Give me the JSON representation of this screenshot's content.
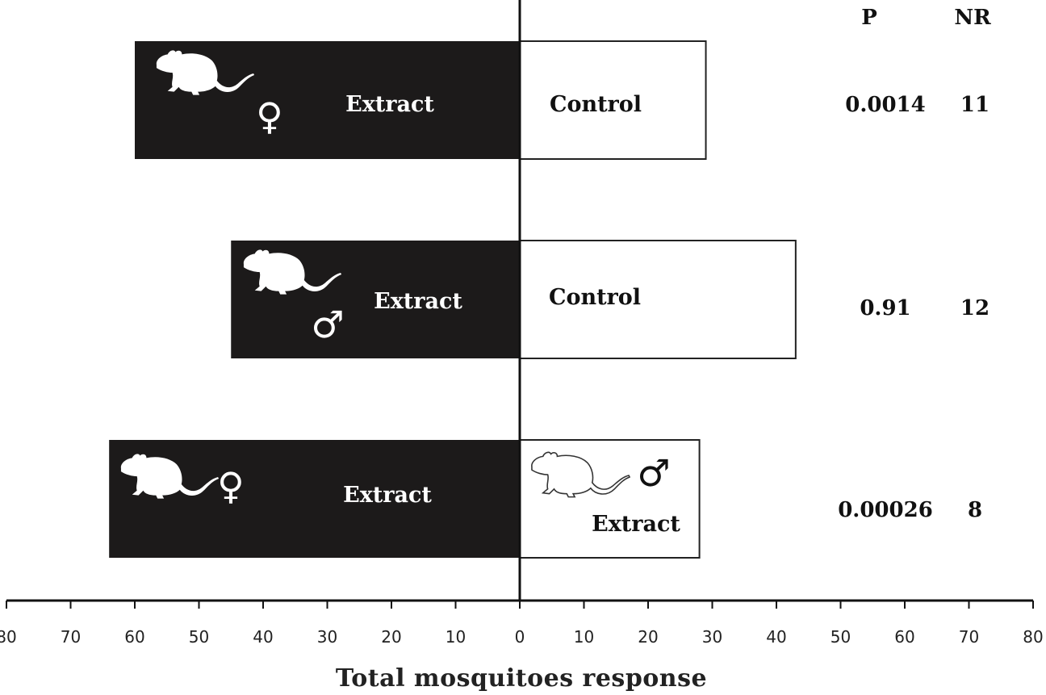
{
  "chart_data": {
    "type": "bar",
    "orientation": "horizontal-diverging",
    "xlabel": "Total mosquitoes response",
    "xlim": [
      -80,
      80
    ],
    "xticks": [
      -80,
      -70,
      -60,
      -50,
      -40,
      -30,
      -20,
      -10,
      0,
      10,
      20,
      30,
      40,
      50,
      60,
      70,
      80
    ],
    "xtick_labels": [
      "80",
      "70",
      "60",
      "50",
      "40",
      "30",
      "20",
      "10",
      "0",
      "10",
      "20",
      "30",
      "40",
      "50",
      "60",
      "70",
      "80"
    ],
    "columns": {
      "p": "P",
      "nr": "NR"
    },
    "rows": [
      {
        "left": {
          "value": 60,
          "label": "Extract",
          "icon": "rat-icon",
          "symbol": "♀"
        },
        "right": {
          "value": 29,
          "label": "Control",
          "icon": "",
          "symbol": ""
        },
        "p": "0.0014",
        "nr": "11"
      },
      {
        "left": {
          "value": 45,
          "label": "Extract",
          "icon": "rat-icon",
          "symbol": "♂"
        },
        "right": {
          "value": 43,
          "label": "Control",
          "icon": "",
          "symbol": ""
        },
        "p": "0.91",
        "nr": "12"
      },
      {
        "left": {
          "value": 64,
          "label": "Extract",
          "icon": "rat-icon",
          "symbol": "♀"
        },
        "right": {
          "value": 28,
          "label": "Extract",
          "icon": "rat-outline-icon",
          "symbol": "♂"
        },
        "p": "0.00026",
        "nr": "8"
      }
    ],
    "colors": {
      "left_bar": "#1c1a1a",
      "right_bar": "#ffffff",
      "axis": "#111111"
    }
  }
}
